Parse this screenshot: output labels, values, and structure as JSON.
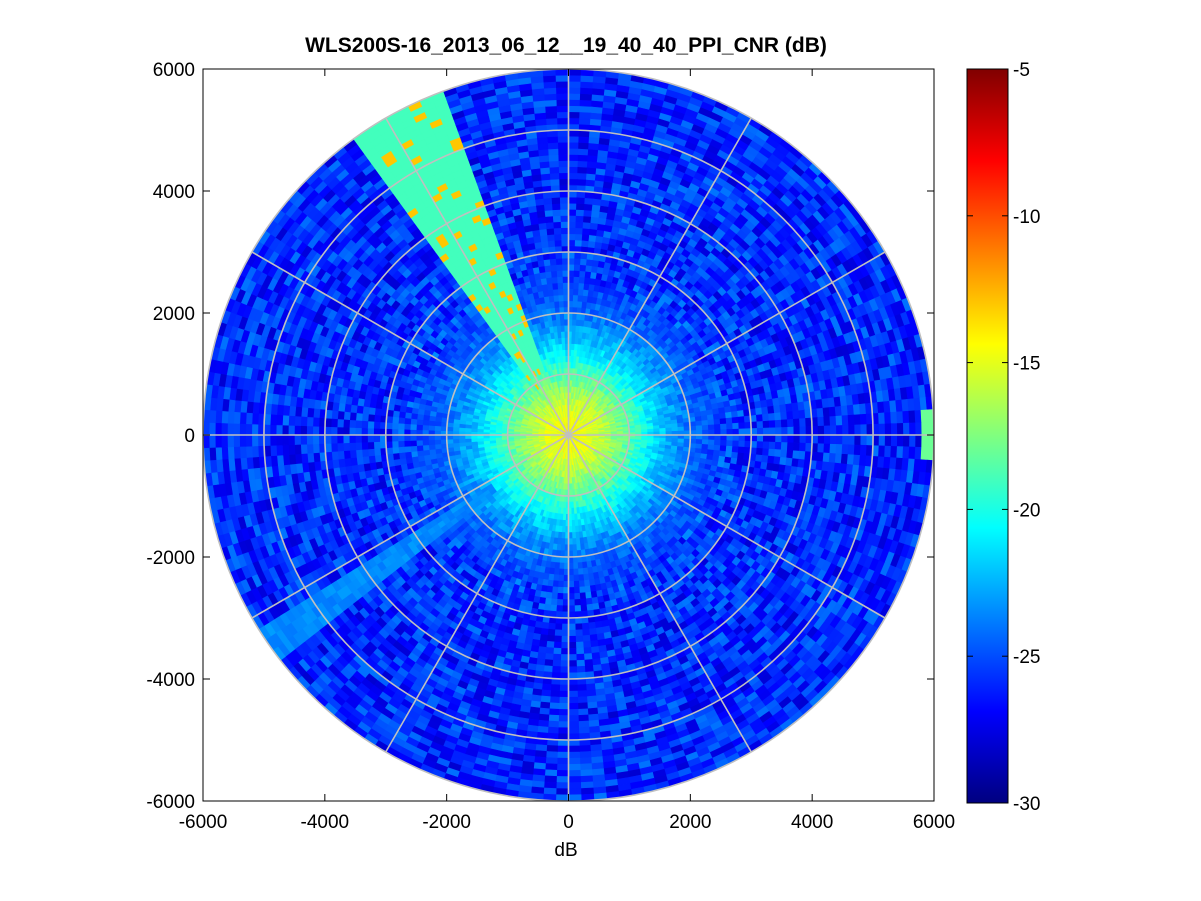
{
  "chart_data": {
    "type": "heatmap",
    "subtype": "polar PPI scan",
    "title": "WLS200S-16_2013_06_12__19_40_40_PPI_CNR (dB)",
    "xlabel": "dB",
    "ylabel": "",
    "xlim": [
      -6000,
      6000
    ],
    "ylim": [
      -6000,
      6000
    ],
    "xticks": [
      "-6000",
      "-4000",
      "-2000",
      "0",
      "2000",
      "4000",
      "6000"
    ],
    "yticks": [
      "6000",
      "4000",
      "2000",
      "0",
      "-2000",
      "-4000",
      "-6000"
    ],
    "colorbar": {
      "colormap": "jet",
      "range": [
        -30,
        -5
      ],
      "ticks": [
        "-5",
        "-10",
        "-15",
        "-20",
        "-25",
        "-30"
      ]
    },
    "polar_grid": {
      "rings": [
        1000,
        2000,
        3000,
        4000,
        5000,
        6000
      ],
      "spokes_deg": [
        0,
        30,
        60,
        90,
        120,
        150,
        180,
        210,
        240,
        270,
        300,
        330
      ],
      "color": "#c0c0c0"
    },
    "field": {
      "max_range": 6000,
      "near_field_cnr": -14.5,
      "far_field_cnr": -26,
      "decay_length": 1500,
      "noise_db": 2.0,
      "features": [
        {
          "name": "high-cnr sector",
          "bearing_from": 325,
          "bearing_to": 341,
          "cnr": -19
        },
        {
          "name": "clear sector",
          "bearing_from": 233,
          "bearing_to": 238,
          "cnr": -23.5
        },
        {
          "name": "blocked beam",
          "bearing_from": 359.2,
          "bearing_to": 0.9,
          "cnr": null
        },
        {
          "name": "hard target",
          "bearing": 90,
          "range": 5900,
          "cnr": -18
        }
      ]
    }
  }
}
